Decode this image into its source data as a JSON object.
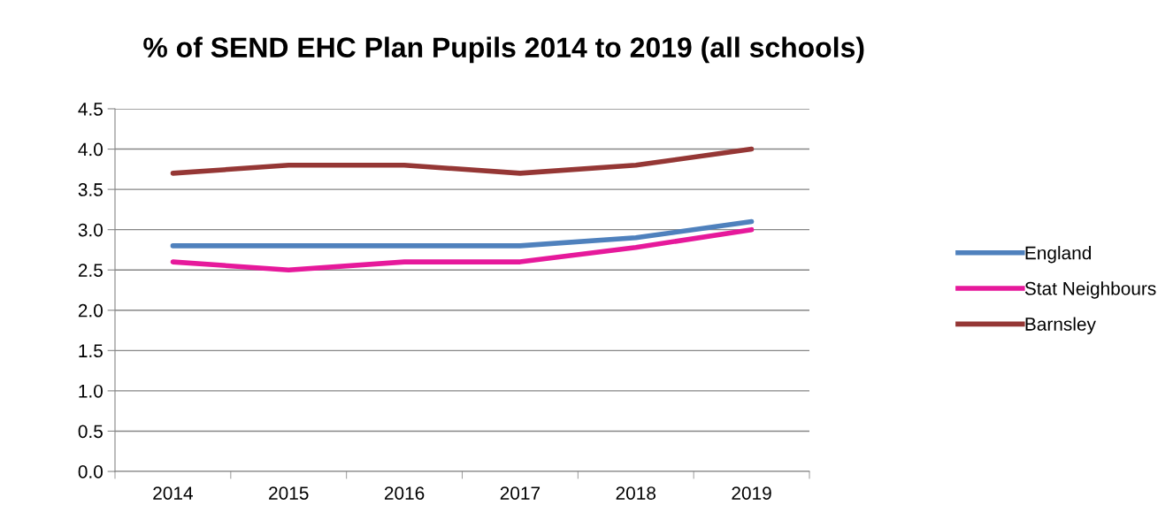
{
  "chart_data": {
    "type": "line",
    "title": "% of SEND EHC Plan Pupils 2014 to 2019 (all schools)",
    "categories": [
      "2014",
      "2015",
      "2016",
      "2017",
      "2018",
      "2019"
    ],
    "series": [
      {
        "name": "England",
        "color": "#4f81bd",
        "values": [
          2.8,
          2.8,
          2.8,
          2.8,
          2.9,
          3.1
        ]
      },
      {
        "name": "Stat Neighbours",
        "color": "#e6199b",
        "values": [
          2.6,
          2.5,
          2.6,
          2.6,
          2.78,
          3.0
        ]
      },
      {
        "name": "Barnsley",
        "color": "#953735",
        "values": [
          3.7,
          3.8,
          3.8,
          3.7,
          3.8,
          4.0
        ]
      }
    ],
    "ylim": [
      0,
      4.5
    ],
    "yticks": [
      {
        "value": 0,
        "label": "0.0"
      },
      0.5,
      {
        "value": 1,
        "label": "1.0"
      },
      1.5,
      {
        "value": 2,
        "label": "2.0"
      },
      2.5,
      {
        "value": 3,
        "label": "3.0"
      },
      3.5,
      {
        "value": 4,
        "label": "4.0"
      },
      4.5
    ],
    "grid": "y",
    "legend": "right",
    "marker": "none",
    "line_style": "solid"
  }
}
